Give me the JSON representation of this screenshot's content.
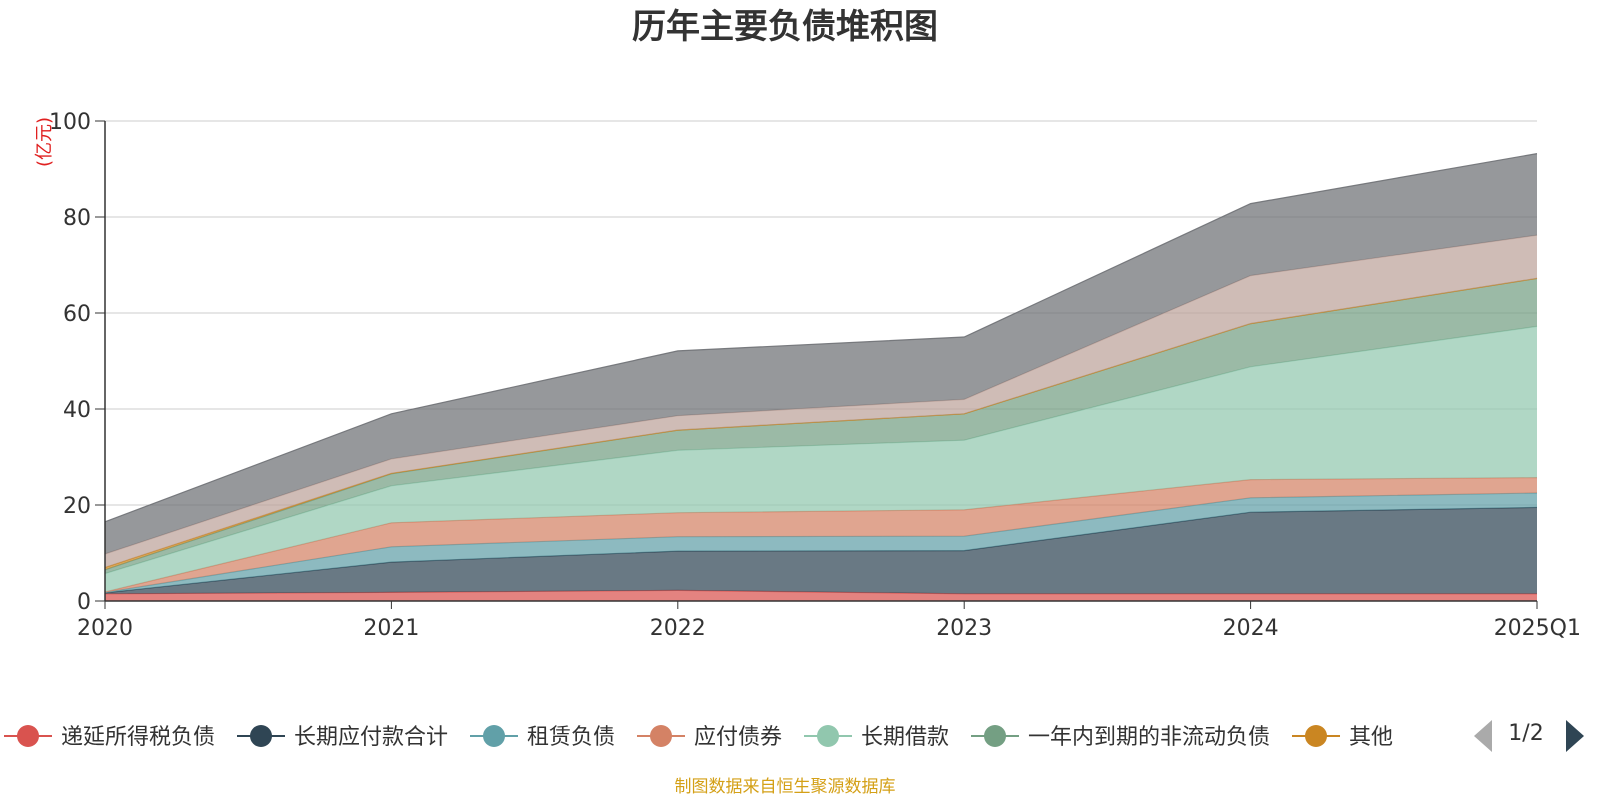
{
  "chart_data": {
    "type": "area",
    "stacked": true,
    "title": "历年主要负债堆积图",
    "unit": "(亿元)",
    "categories": [
      "2020",
      "2021",
      "2022",
      "2023",
      "2024",
      "2025Q1"
    ],
    "ylim": [
      0,
      100
    ],
    "yticks": [
      0,
      20,
      40,
      60,
      80,
      100
    ],
    "grid": true,
    "series": [
      {
        "name": "递延所得税负债",
        "color": "#d9534f",
        "values": [
          1.5,
          1.8,
          2.2,
          1.5,
          1.5,
          1.5
        ]
      },
      {
        "name": "长期应付款合计",
        "color": "#2f4554",
        "values": [
          0.2,
          6.3,
          8.2,
          9.0,
          17.0,
          18.0
        ]
      },
      {
        "name": "租赁负债",
        "color": "#61a0a8",
        "values": [
          0.1,
          3.2,
          3.0,
          3.0,
          3.0,
          3.0
        ]
      },
      {
        "name": "应付债券",
        "color": "#d48265",
        "values": [
          0.1,
          5.0,
          5.0,
          5.5,
          3.8,
          3.2
        ]
      },
      {
        "name": "长期借款",
        "color": "#91c7ae",
        "values": [
          3.8,
          7.7,
          13.0,
          14.5,
          23.5,
          31.5
        ]
      },
      {
        "name": "一年内到期的非流动负债",
        "color": "#749f83",
        "values": [
          0.8,
          2.5,
          4.2,
          5.5,
          9.0,
          10.0
        ]
      },
      {
        "name": "其他",
        "color": "#ca8622",
        "values": [
          0.5,
          0.1,
          0.0,
          0.0,
          0.0,
          0.0
        ]
      },
      {
        "name": "",
        "color": "#bda29a",
        "values": [
          2.8,
          3.0,
          3.0,
          3.0,
          10.0,
          9.0
        ]
      },
      {
        "name": "",
        "color": "#6e7074",
        "values": [
          6.7,
          9.4,
          13.5,
          13.0,
          15.0,
          17.0
        ]
      }
    ],
    "legend": {
      "position": "bottom",
      "page": "1/2"
    },
    "source": "制图数据来自恒生聚源数据库"
  }
}
